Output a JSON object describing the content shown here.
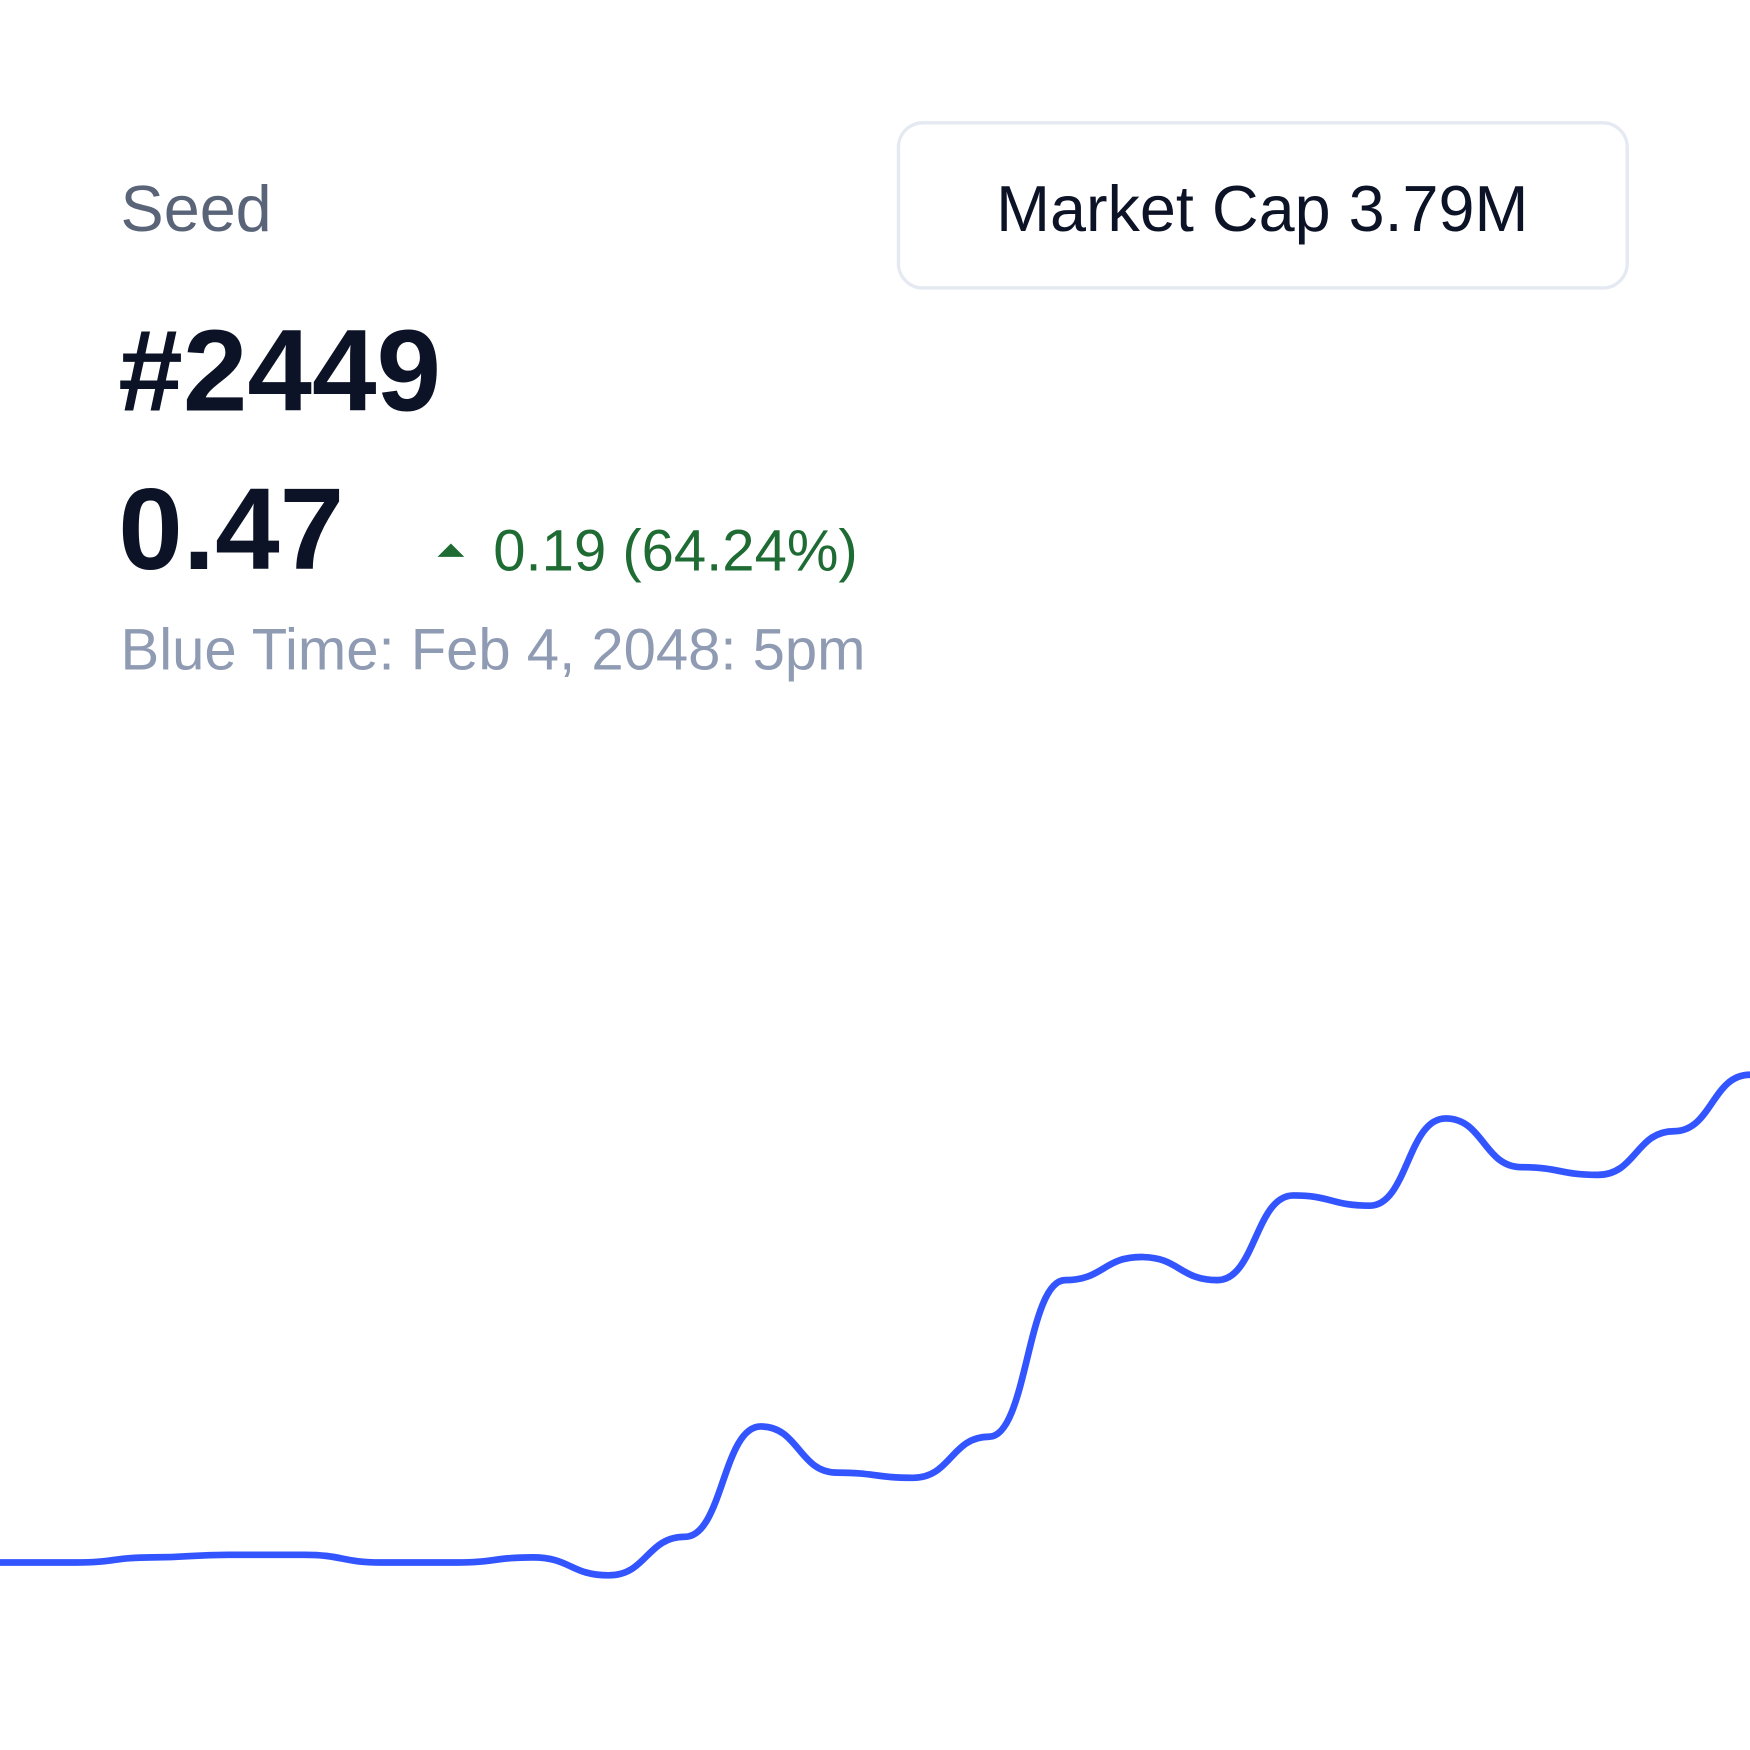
{
  "header": {
    "label": "Seed",
    "id": "#2449",
    "price": "0.47",
    "change": "0.19 (64.24%)",
    "time": "Blue Time: Feb 4, 2048: 5pm"
  },
  "market_cap": {
    "label": "Market Cap",
    "value": "3.79M"
  },
  "chart_data": {
    "type": "line",
    "color": "#3355ff",
    "values": [
      0.28,
      0.28,
      0.282,
      0.283,
      0.283,
      0.28,
      0.28,
      0.282,
      0.275,
      0.29,
      0.333,
      0.315,
      0.313,
      0.329,
      0.39,
      0.399,
      0.39,
      0.423,
      0.419,
      0.453,
      0.434,
      0.431,
      0.448,
      0.47
    ],
    "ylim": [
      0.2,
      0.6
    ]
  }
}
